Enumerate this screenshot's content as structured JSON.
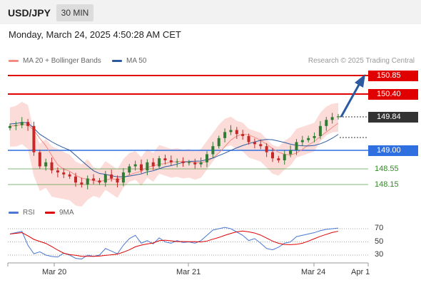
{
  "header": {
    "symbol": "USD/JPY",
    "timeframe": "30 MIN"
  },
  "timestamp": "Monday, March 24, 2025 4:50:28 AM CET",
  "legend": {
    "ma20": {
      "label": "MA 20 + Bollinger Bands",
      "color": "#f28b82"
    },
    "ma50": {
      "label": "MA 50",
      "color": "#2c5aa0"
    }
  },
  "credit": "Research © 2025 Trading Central",
  "levels": {
    "r2": {
      "value": "150.85",
      "color": "#e00000"
    },
    "r1": {
      "value": "150.40",
      "color": "#e00000"
    },
    "current": {
      "value": "149.84",
      "color": "#333333"
    },
    "pivot": {
      "value": "149.00",
      "color": "#2f6fe0"
    },
    "s1": {
      "value": "148.55",
      "color": "#2e8b20"
    },
    "s2": {
      "value": "148.15",
      "color": "#2e8b20"
    }
  },
  "rsi_legend": {
    "rsi": {
      "label": "RSI",
      "color": "#4a78d4"
    },
    "ma9": {
      "label": "9MA",
      "color": "#e00000"
    }
  },
  "rsi_levels": [
    "70",
    "50",
    "30"
  ],
  "xaxis": [
    "Mar 20",
    "Mar 21",
    "Mar 24",
    "Apr 1"
  ],
  "colors": {
    "up": "#2f7d32",
    "down": "#c62828",
    "band_fill": "#fbd0cc",
    "ma20": "#f28b82",
    "ma50": "#2c5aa0",
    "arrow": "#2c5aa0"
  },
  "chart_data": {
    "type": "candlestick",
    "price_range": [
      147.9,
      151.1
    ],
    "close_path": [
      149.6,
      149.62,
      149.7,
      149.6,
      148.95,
      148.6,
      148.7,
      148.5,
      148.45,
      148.4,
      148.35,
      148.2,
      148.15,
      148.3,
      148.25,
      148.2,
      148.4,
      148.3,
      148.2,
      148.45,
      148.6,
      148.65,
      148.5,
      148.7,
      148.6,
      148.8,
      148.75,
      148.7,
      148.72,
      148.68,
      148.7,
      148.65,
      148.7,
      148.9,
      149.1,
      149.3,
      149.45,
      149.5,
      149.4,
      149.35,
      149.2,
      149.15,
      149.1,
      148.95,
      148.8,
      148.75,
      148.9,
      149.0,
      149.2,
      149.25,
      149.3,
      149.35,
      149.6,
      149.75,
      149.82,
      149.84
    ],
    "rsi_range": [
      20,
      80
    ]
  }
}
